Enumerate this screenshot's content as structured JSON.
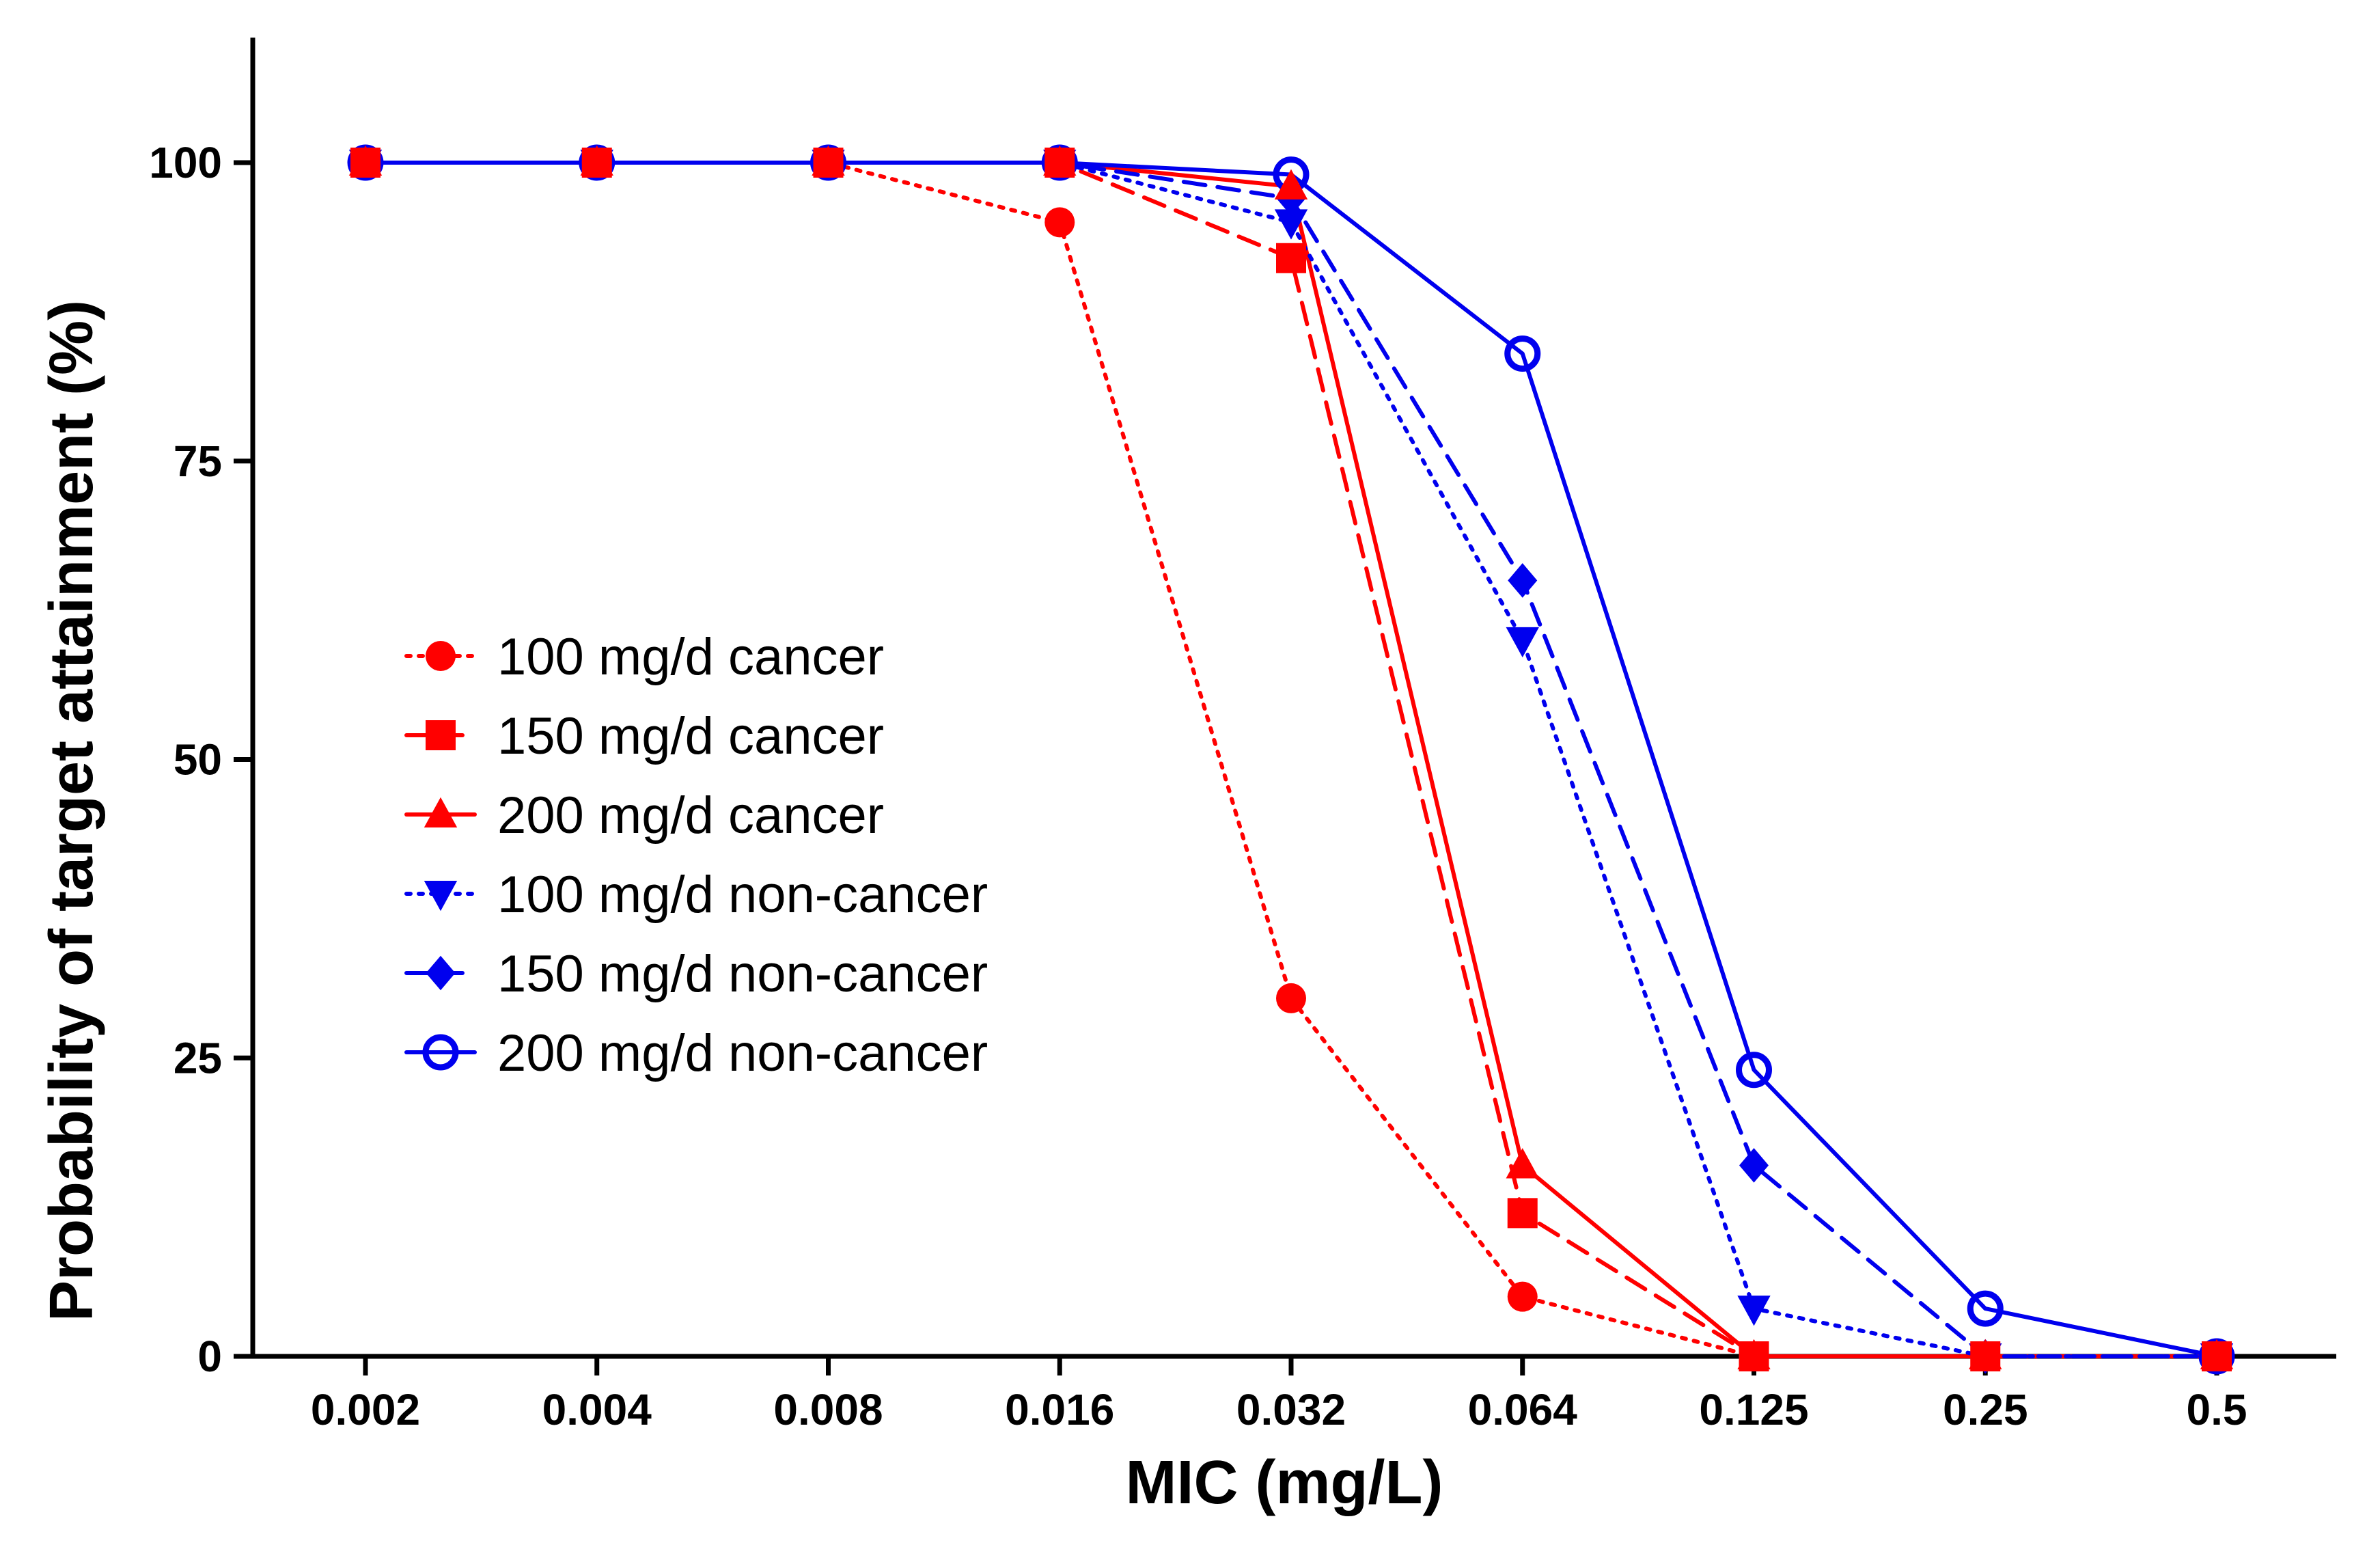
{
  "chart_data": {
    "type": "line",
    "title": "",
    "xlabel": "MIC (mg/L)",
    "ylabel": "Probability of target attainment (%)",
    "categories": [
      "0.002",
      "0.004",
      "0.008",
      "0.016",
      "0.032",
      "0.064",
      "0.125",
      "0.25",
      "0.5"
    ],
    "ylim": [
      0,
      110
    ],
    "yticks": [
      0,
      25,
      50,
      75,
      100
    ],
    "ytick_labels": [
      "0",
      "25",
      "50",
      "75",
      "100"
    ],
    "grid": false,
    "legend_position": "center-left",
    "series": [
      {
        "name": "100 mg/d cancer",
        "color": "#ff0000",
        "line": "dotted",
        "marker": "circle",
        "values": [
          100,
          100,
          100,
          95,
          30,
          5,
          0,
          0,
          0
        ]
      },
      {
        "name": "150 mg/d cancer",
        "color": "#ff0000",
        "line": "dashed",
        "marker": "square",
        "values": [
          100,
          100,
          100,
          100,
          92,
          12,
          0,
          0,
          0
        ]
      },
      {
        "name": "200 mg/d cancer",
        "color": "#ff0000",
        "line": "solid",
        "marker": "triangle-up",
        "values": [
          100,
          100,
          100,
          100,
          98,
          16,
          0,
          0,
          0
        ]
      },
      {
        "name": "100 mg/d non-cancer",
        "color": "#0000ee",
        "line": "dotted",
        "marker": "triangle-down",
        "values": [
          100,
          100,
          100,
          100,
          95,
          60,
          4,
          0,
          0
        ]
      },
      {
        "name": "150 mg/d non-cancer",
        "color": "#0000ee",
        "line": "dashed",
        "marker": "diamond",
        "values": [
          100,
          100,
          100,
          100,
          97,
          65,
          16,
          0,
          0
        ]
      },
      {
        "name": "200 mg/d non-cancer",
        "color": "#0000ee",
        "line": "solid",
        "marker": "open-circle",
        "values": [
          100,
          100,
          100,
          100,
          99,
          84,
          24,
          4,
          0
        ]
      }
    ]
  }
}
